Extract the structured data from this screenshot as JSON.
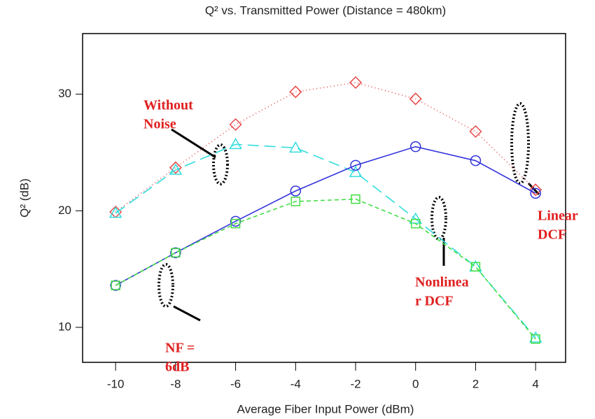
{
  "chart_data": {
    "type": "line",
    "title": "Q² vs. Transmitted Power (Distance = 480km)",
    "x_label": "Average Fiber Input Power (dBm)",
    "y_label": "Q² (dB)",
    "x": [
      -10,
      -8,
      -6,
      -4,
      -2,
      0,
      2,
      4
    ],
    "series": [
      {
        "color": "#e84848",
        "marker": "diamond",
        "linestyle": "dotted",
        "values": [
          19.9,
          23.7,
          27.4,
          30.2,
          31.0,
          29.6,
          26.8,
          21.8
        ]
      },
      {
        "color": "#33dddd",
        "marker": "triangle",
        "linestyle": "longdash",
        "values": [
          19.8,
          23.5,
          25.7,
          25.4,
          23.3,
          19.3,
          15.2,
          9.1
        ]
      },
      {
        "color": "#3333dd",
        "marker": "circle",
        "linestyle": "solid",
        "values": [
          13.6,
          16.4,
          19.1,
          21.7,
          23.9,
          25.5,
          24.3,
          21.5
        ]
      },
      {
        "color": "#44dd44",
        "marker": "square",
        "linestyle": "dashed",
        "values": [
          13.6,
          16.4,
          18.9,
          20.8,
          21.0,
          18.9,
          15.2,
          9.0
        ]
      }
    ],
    "xlim": [
      -11.1,
      5
    ],
    "xticks": [
      -10,
      -8,
      -6,
      -4,
      -2,
      0,
      2,
      4
    ],
    "ylim": [
      7,
      35.2
    ],
    "yticks": [
      10,
      20,
      30
    ],
    "annotations": [
      {
        "lines": [
          "Without",
          "Noise"
        ]
      },
      {
        "lines": [
          "Linear",
          "DCF"
        ]
      },
      {
        "lines": [
          "Nonlinea",
          "r DCF"
        ]
      },
      {
        "lines": [
          "NF =",
          "6dB"
        ]
      }
    ]
  }
}
